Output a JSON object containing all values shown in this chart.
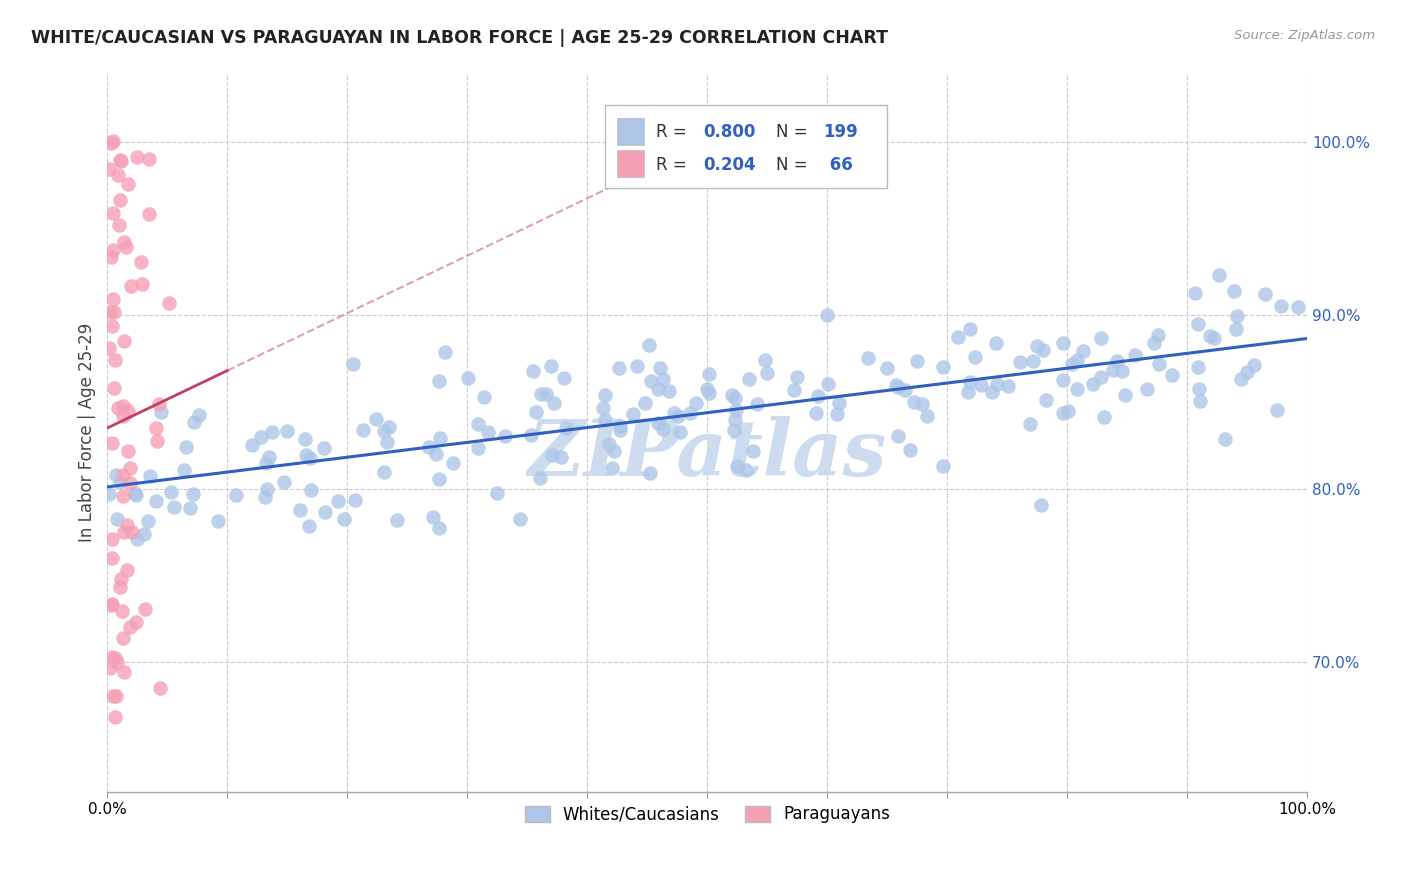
{
  "title": "WHITE/CAUCASIAN VS PARAGUAYAN IN LABOR FORCE | AGE 25-29 CORRELATION CHART",
  "source": "Source: ZipAtlas.com",
  "ylabel": "In Labor Force | Age 25-29",
  "watermark": "ZIPatlas",
  "blue_R": 0.8,
  "blue_N": 199,
  "pink_R": 0.204,
  "pink_N": 66,
  "blue_color": "#adc6e8",
  "pink_color": "#f5a0b4",
  "blue_line_color": "#3060c0",
  "pink_line_color": "#c04060",
  "title_color": "#222222",
  "axis_label_color": "#444444",
  "right_tick_color": "#3060c0",
  "watermark_color": "#ccdcee",
  "grid_color": "#cccccc",
  "background_color": "#ffffff",
  "xlim": [
    0.0,
    1.0
  ],
  "ylim": [
    0.625,
    1.04
  ],
  "yticks": [
    0.7,
    0.8,
    0.9,
    1.0
  ],
  "xticks": [
    0.0,
    0.1,
    0.2,
    0.3,
    0.4,
    0.5,
    0.6,
    0.7,
    0.8,
    0.9,
    1.0
  ]
}
